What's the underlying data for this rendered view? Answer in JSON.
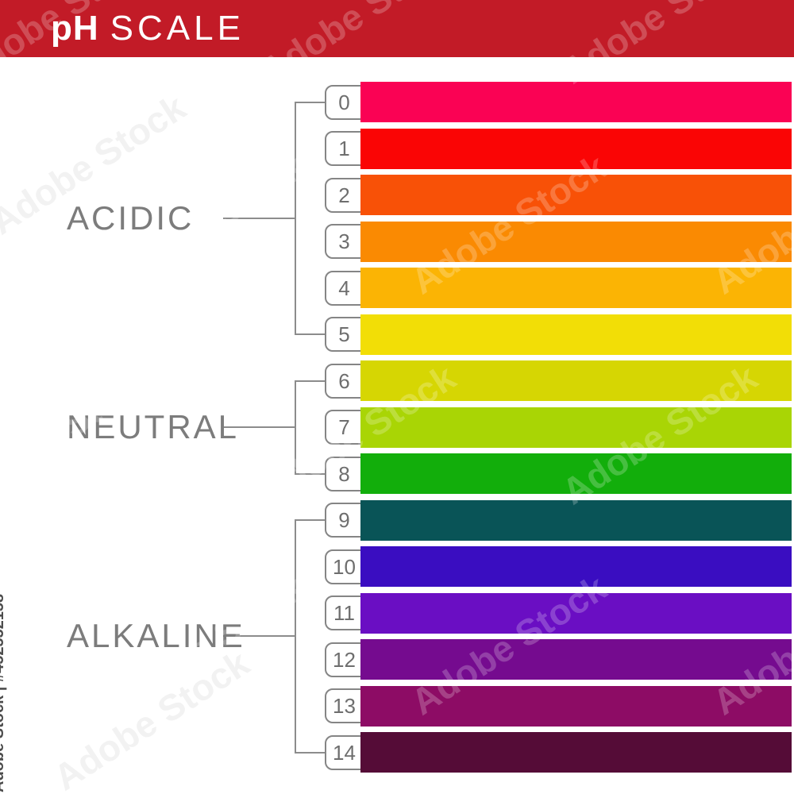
{
  "header": {
    "title_primary": "pH",
    "title_secondary": "SCALE",
    "banner_color": "#C21B27",
    "text_color": "#FFFFFF"
  },
  "groups": [
    {
      "label": "ACIDIC",
      "from": 0,
      "to": 5
    },
    {
      "label": "NEUTRAL",
      "from": 6,
      "to": 8
    },
    {
      "label": "ALKALINE",
      "from": 9,
      "to": 14
    }
  ],
  "scale": {
    "levels": [
      {
        "ph": "0",
        "color": "#FA0254"
      },
      {
        "ph": "1",
        "color": "#FA0505"
      },
      {
        "ph": "2",
        "color": "#F85107"
      },
      {
        "ph": "3",
        "color": "#FA8A02"
      },
      {
        "ph": "4",
        "color": "#FBB404"
      },
      {
        "ph": "5",
        "color": "#F2DE06"
      },
      {
        "ph": "6",
        "color": "#D6D603"
      },
      {
        "ph": "7",
        "color": "#A9D505"
      },
      {
        "ph": "8",
        "color": "#12AE0B"
      },
      {
        "ph": "9",
        "color": "#095457"
      },
      {
        "ph": "10",
        "color": "#3A0DC1"
      },
      {
        "ph": "11",
        "color": "#6A0EC3"
      },
      {
        "ph": "12",
        "color": "#750B8F"
      },
      {
        "ph": "13",
        "color": "#8D0C65"
      },
      {
        "ph": "14",
        "color": "#550C37"
      }
    ]
  },
  "style": {
    "line_color": "#8C8C8C",
    "label_color": "#7C7C7C",
    "number_color": "#6E6E6E"
  },
  "watermarks": {
    "side_text": "Adobe Stock | #452552158",
    "pattern_text": "Adobe Stock"
  }
}
